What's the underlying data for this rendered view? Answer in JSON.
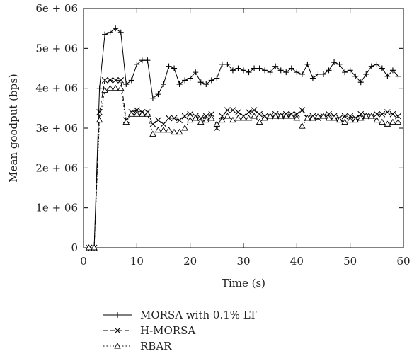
{
  "chart_data": {
    "type": "line",
    "title": "",
    "xlabel": "Time (s)",
    "ylabel": "Mean goodput (bps)",
    "xlim": [
      0,
      60
    ],
    "ylim": [
      0,
      6000000
    ],
    "x_ticks": [
      0,
      10,
      20,
      30,
      40,
      50,
      60
    ],
    "x_tick_labels": [
      "0",
      "10",
      "20",
      "30",
      "40",
      "50",
      "60"
    ],
    "y_ticks": [
      0,
      1000000,
      2000000,
      3000000,
      4000000,
      5000000,
      6000000
    ],
    "y_tick_labels": [
      "0",
      "1e + 06",
      "2e + 06",
      "3e + 06",
      "4e + 06",
      "5e + 06",
      "6e + 06"
    ],
    "grid": false,
    "legend_position": "below the plot",
    "series": [
      {
        "name": "MORSA with 0.1% LT",
        "line_style": "solid",
        "marker": "plus",
        "color": "#000000",
        "x": [
          1,
          2,
          3,
          4,
          5,
          6,
          7,
          8,
          9,
          10,
          11,
          12,
          13,
          14,
          15,
          16,
          17,
          18,
          19,
          20,
          21,
          22,
          23,
          24,
          25,
          26,
          27,
          28,
          29,
          30,
          31,
          32,
          33,
          34,
          35,
          36,
          37,
          38,
          39,
          40,
          41,
          42,
          43,
          44,
          45,
          46,
          47,
          48,
          49,
          50,
          51,
          52,
          53,
          54,
          55,
          56,
          57,
          58,
          59
        ],
        "y": [
          0,
          0,
          4000000,
          5350000,
          5400000,
          5500000,
          5400000,
          4100000,
          4200000,
          4600000,
          4700000,
          4700000,
          3750000,
          3850000,
          4100000,
          4550000,
          4500000,
          4100000,
          4200000,
          4250000,
          4400000,
          4150000,
          4100000,
          4200000,
          4250000,
          4600000,
          4600000,
          4450000,
          4500000,
          4450000,
          4400000,
          4500000,
          4500000,
          4450000,
          4400000,
          4550000,
          4450000,
          4400000,
          4500000,
          4400000,
          4350000,
          4600000,
          4250000,
          4350000,
          4350000,
          4450000,
          4650000,
          4600000,
          4400000,
          4450000,
          4300000,
          4150000,
          4350000,
          4550000,
          4600000,
          4500000,
          4300000,
          4450000,
          4300000
        ]
      },
      {
        "name": "H-MORSA",
        "line_style": "dashed",
        "marker": "x",
        "color": "#000000",
        "x": [
          1,
          2,
          3,
          4,
          5,
          6,
          7,
          8,
          9,
          10,
          11,
          12,
          13,
          14,
          15,
          16,
          17,
          18,
          19,
          20,
          21,
          22,
          23,
          24,
          25,
          26,
          27,
          28,
          29,
          30,
          31,
          32,
          33,
          34,
          35,
          36,
          37,
          38,
          39,
          40,
          41,
          42,
          43,
          44,
          45,
          46,
          47,
          48,
          49,
          50,
          51,
          52,
          53,
          54,
          55,
          56,
          57,
          58,
          59
        ],
        "y": [
          0,
          0,
          3400000,
          4200000,
          4200000,
          4200000,
          4200000,
          3200000,
          3400000,
          3450000,
          3400000,
          3400000,
          3100000,
          3200000,
          3100000,
          3250000,
          3250000,
          3200000,
          3300000,
          3350000,
          3300000,
          3250000,
          3300000,
          3350000,
          3000000,
          3300000,
          3450000,
          3450000,
          3400000,
          3300000,
          3400000,
          3450000,
          3350000,
          3300000,
          3300000,
          3350000,
          3300000,
          3350000,
          3350000,
          3350000,
          3450000,
          3250000,
          3300000,
          3250000,
          3300000,
          3350000,
          3300000,
          3250000,
          3300000,
          3300000,
          3250000,
          3350000,
          3300000,
          3300000,
          3350000,
          3350000,
          3400000,
          3350000,
          3300000
        ]
      },
      {
        "name": "RBAR",
        "line_style": "dotted",
        "marker": "triangle",
        "color": "#000000",
        "x": [
          1,
          2,
          3,
          4,
          5,
          6,
          7,
          8,
          9,
          10,
          11,
          12,
          13,
          14,
          15,
          16,
          17,
          18,
          19,
          20,
          21,
          22,
          23,
          24,
          25,
          26,
          27,
          28,
          29,
          30,
          31,
          32,
          33,
          34,
          35,
          36,
          37,
          38,
          39,
          40,
          41,
          42,
          43,
          44,
          45,
          46,
          47,
          48,
          49,
          50,
          51,
          52,
          53,
          54,
          55,
          56,
          57,
          58,
          59
        ],
        "y": [
          0,
          0,
          3200000,
          3950000,
          4000000,
          4000000,
          4000000,
          3150000,
          3350000,
          3350000,
          3350000,
          3350000,
          2850000,
          2950000,
          2950000,
          2950000,
          2900000,
          2900000,
          3000000,
          3200000,
          3250000,
          3150000,
          3200000,
          3250000,
          3100000,
          3200000,
          3300000,
          3200000,
          3250000,
          3250000,
          3250000,
          3300000,
          3150000,
          3250000,
          3300000,
          3300000,
          3300000,
          3300000,
          3300000,
          3250000,
          3050000,
          3250000,
          3250000,
          3300000,
          3300000,
          3250000,
          3250000,
          3200000,
          3150000,
          3200000,
          3200000,
          3250000,
          3300000,
          3300000,
          3200000,
          3150000,
          3100000,
          3150000,
          3150000
        ]
      }
    ]
  }
}
